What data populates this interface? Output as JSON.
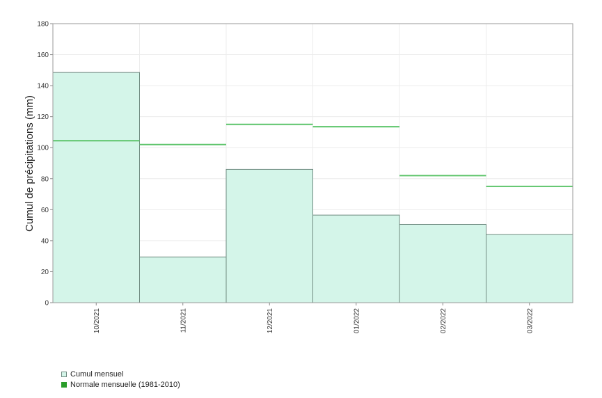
{
  "chart_data": {
    "type": "bar",
    "categories": [
      "10/2021",
      "11/2021",
      "12/2021",
      "01/2022",
      "02/2022",
      "03/2022"
    ],
    "series": [
      {
        "name": "Cumul mensuel",
        "values": [
          148.5,
          29.5,
          86.0,
          56.5,
          50.5,
          44.0
        ]
      },
      {
        "name": "Normale mensuelle (1981-2010)",
        "values": [
          104.5,
          102.0,
          115.0,
          113.5,
          82.0,
          75.0
        ]
      }
    ],
    "title": "",
    "xlabel": "",
    "ylabel": "Cumul de précipitations (mm)",
    "ylim": [
      0,
      180
    ],
    "yticks": [
      0,
      20,
      40,
      60,
      80,
      100,
      120,
      140,
      160,
      180
    ],
    "grid": true,
    "legend_position": "bottom-left"
  },
  "colors": {
    "bar_fill": "#d4f5e9",
    "bar_stroke": "#6f8a80",
    "normal_line": "#5cc46a",
    "legend_normal": "#2a9d2a"
  }
}
